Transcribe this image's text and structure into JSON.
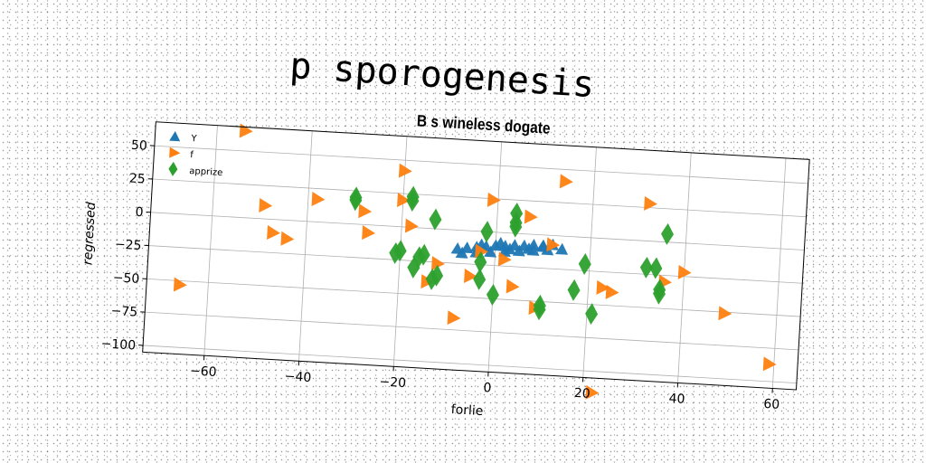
{
  "supertitle": "p sporogenesis",
  "chart_data": {
    "type": "scatter",
    "title": "B s wineless dogate",
    "xlabel": "forlie",
    "ylabel": "regressed",
    "xlim": [
      -73,
      65
    ],
    "ylim": [
      -105,
      68
    ],
    "xticks": [
      -60,
      -40,
      -20,
      0,
      20,
      40,
      60
    ],
    "yticks": [
      50,
      25,
      0,
      -25,
      -50,
      -75,
      -100
    ],
    "grid": true,
    "legend_position": "top-left",
    "series": [
      {
        "name": "Y",
        "marker": "triangle-up",
        "color": "#1f77b4",
        "points": [
          [
            -8,
            -14
          ],
          [
            -6,
            -13
          ],
          [
            -4,
            -12
          ],
          [
            -2,
            -11
          ],
          [
            0,
            -10
          ],
          [
            2,
            -10
          ],
          [
            4,
            -9
          ],
          [
            6,
            -9
          ],
          [
            8,
            -8
          ],
          [
            10,
            -8
          ],
          [
            12,
            -7
          ],
          [
            -7,
            -17
          ],
          [
            -4,
            -16
          ],
          [
            -1,
            -15
          ],
          [
            2,
            -14
          ],
          [
            5,
            -13
          ],
          [
            8,
            -12
          ],
          [
            11,
            -11
          ],
          [
            14,
            -10
          ],
          [
            -3,
            -10
          ],
          [
            1,
            -8
          ],
          [
            3,
            -12
          ],
          [
            7,
            -11
          ],
          [
            10,
            -9
          ]
        ]
      },
      {
        "name": "f",
        "marker": "triangle-right",
        "color": "#ff7f0e",
        "points": [
          [
            -54,
            65
          ],
          [
            -49,
            10
          ],
          [
            -47,
            -10
          ],
          [
            -44,
            -14
          ],
          [
            -38,
            17
          ],
          [
            -28,
            10
          ],
          [
            -27,
            -6
          ],
          [
            -20,
            42
          ],
          [
            -20,
            20
          ],
          [
            -18,
            1
          ],
          [
            -14,
            -40
          ],
          [
            -12,
            -26
          ],
          [
            -8,
            -66
          ],
          [
            -5,
            -34
          ],
          [
            -3,
            -15
          ],
          [
            -1,
            24
          ],
          [
            2,
            -20
          ],
          [
            4,
            -40
          ],
          [
            7,
            13
          ],
          [
            9,
            -55
          ],
          [
            12,
            -7
          ],
          [
            14,
            41
          ],
          [
            23,
            -37
          ],
          [
            22,
            -116
          ],
          [
            25,
            -40
          ],
          [
            32,
            28
          ],
          [
            36,
            -30
          ],
          [
            40,
            -22
          ],
          [
            49,
            -51
          ],
          [
            59,
            -87
          ],
          [
            -66,
            -53
          ]
        ]
      },
      {
        "name": "apprize",
        "marker": "diamond",
        "color": "#2ca02c",
        "points": [
          [
            -30,
            20
          ],
          [
            -30,
            18
          ],
          [
            -18,
            23
          ],
          [
            -18,
            20
          ],
          [
            -21,
            -20
          ],
          [
            -17,
            -30
          ],
          [
            -16,
            -22
          ],
          [
            -15,
            -20
          ],
          [
            -13,
            -38
          ],
          [
            -12,
            -35
          ],
          [
            -13,
            7
          ],
          [
            -3,
            -23
          ],
          [
            -3,
            -36
          ],
          [
            -2,
            0
          ],
          [
            0,
            -47
          ],
          [
            4,
            15
          ],
          [
            4,
            8
          ],
          [
            4,
            5
          ],
          [
            10,
            -53
          ],
          [
            10,
            -56
          ],
          [
            17,
            -40
          ],
          [
            19,
            -20
          ],
          [
            21,
            -57
          ],
          [
            32,
            -20
          ],
          [
            34,
            -20
          ],
          [
            35,
            -39
          ],
          [
            35,
            -36
          ],
          [
            36,
            6
          ],
          [
            -20,
            -18
          ]
        ]
      }
    ]
  }
}
